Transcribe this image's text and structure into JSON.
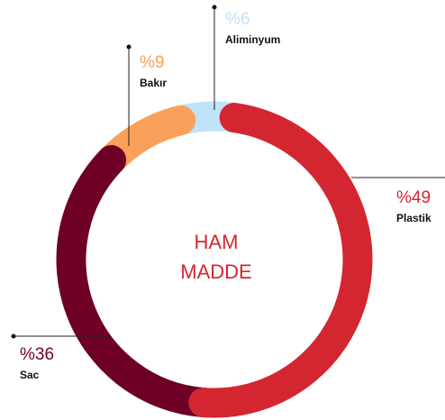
{
  "chart_data": {
    "type": "donut",
    "center_text": [
      "HAM",
      "MADDE"
    ],
    "categories": [
      "Plastik",
      "Sac",
      "Bakır",
      "Aliminyum"
    ],
    "values": [
      49,
      36,
      9,
      6
    ],
    "value_labels": [
      "%49",
      "%36",
      "%9",
      "%6"
    ],
    "colors": [
      "#d42630",
      "#6e0025",
      "#f9a05a",
      "#bfe3f7"
    ]
  }
}
